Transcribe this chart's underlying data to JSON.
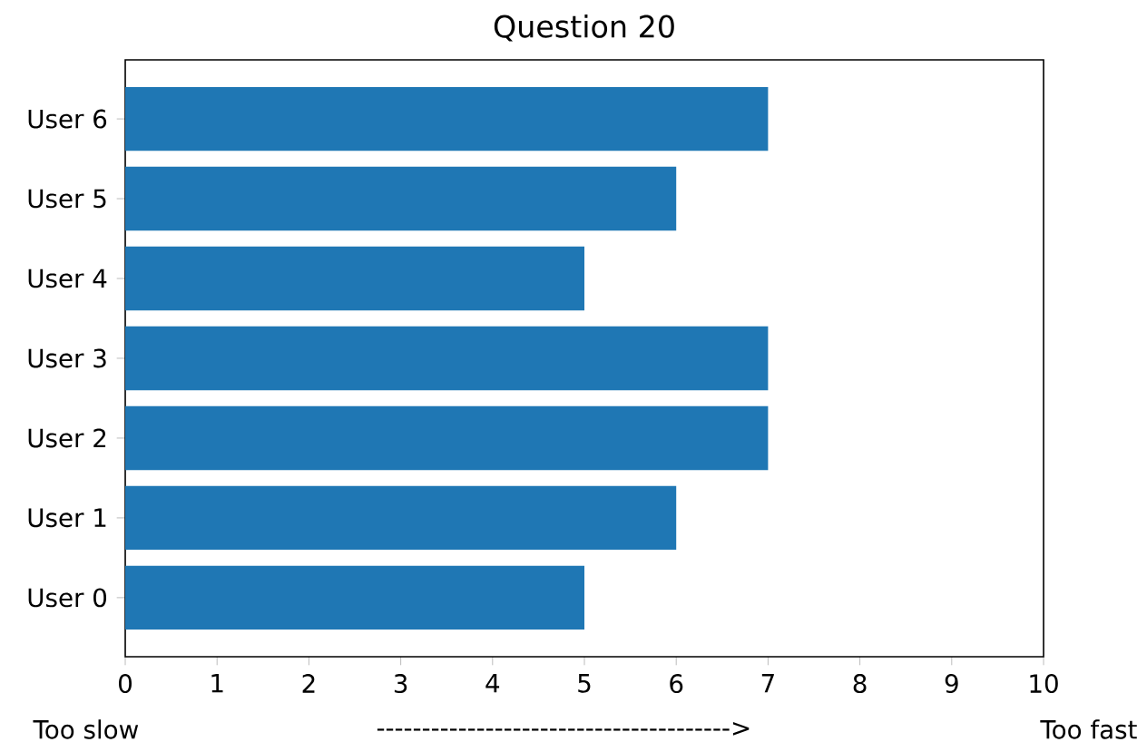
{
  "chart_data": {
    "type": "bar",
    "orientation": "horizontal",
    "title": "Question 20",
    "categories": [
      "User 6",
      "User 5",
      "User 4",
      "User 3",
      "User 2",
      "User 1",
      "User 0"
    ],
    "values": [
      7,
      6,
      5,
      7,
      7,
      6,
      5
    ],
    "color": "#1f77b4",
    "xlim": [
      0,
      10
    ],
    "xticks": [
      0,
      1,
      2,
      3,
      4,
      5,
      6,
      7,
      8,
      9,
      10
    ],
    "annotations": [
      "Too slow",
      "--------------------------------------->",
      "Too fast"
    ]
  }
}
